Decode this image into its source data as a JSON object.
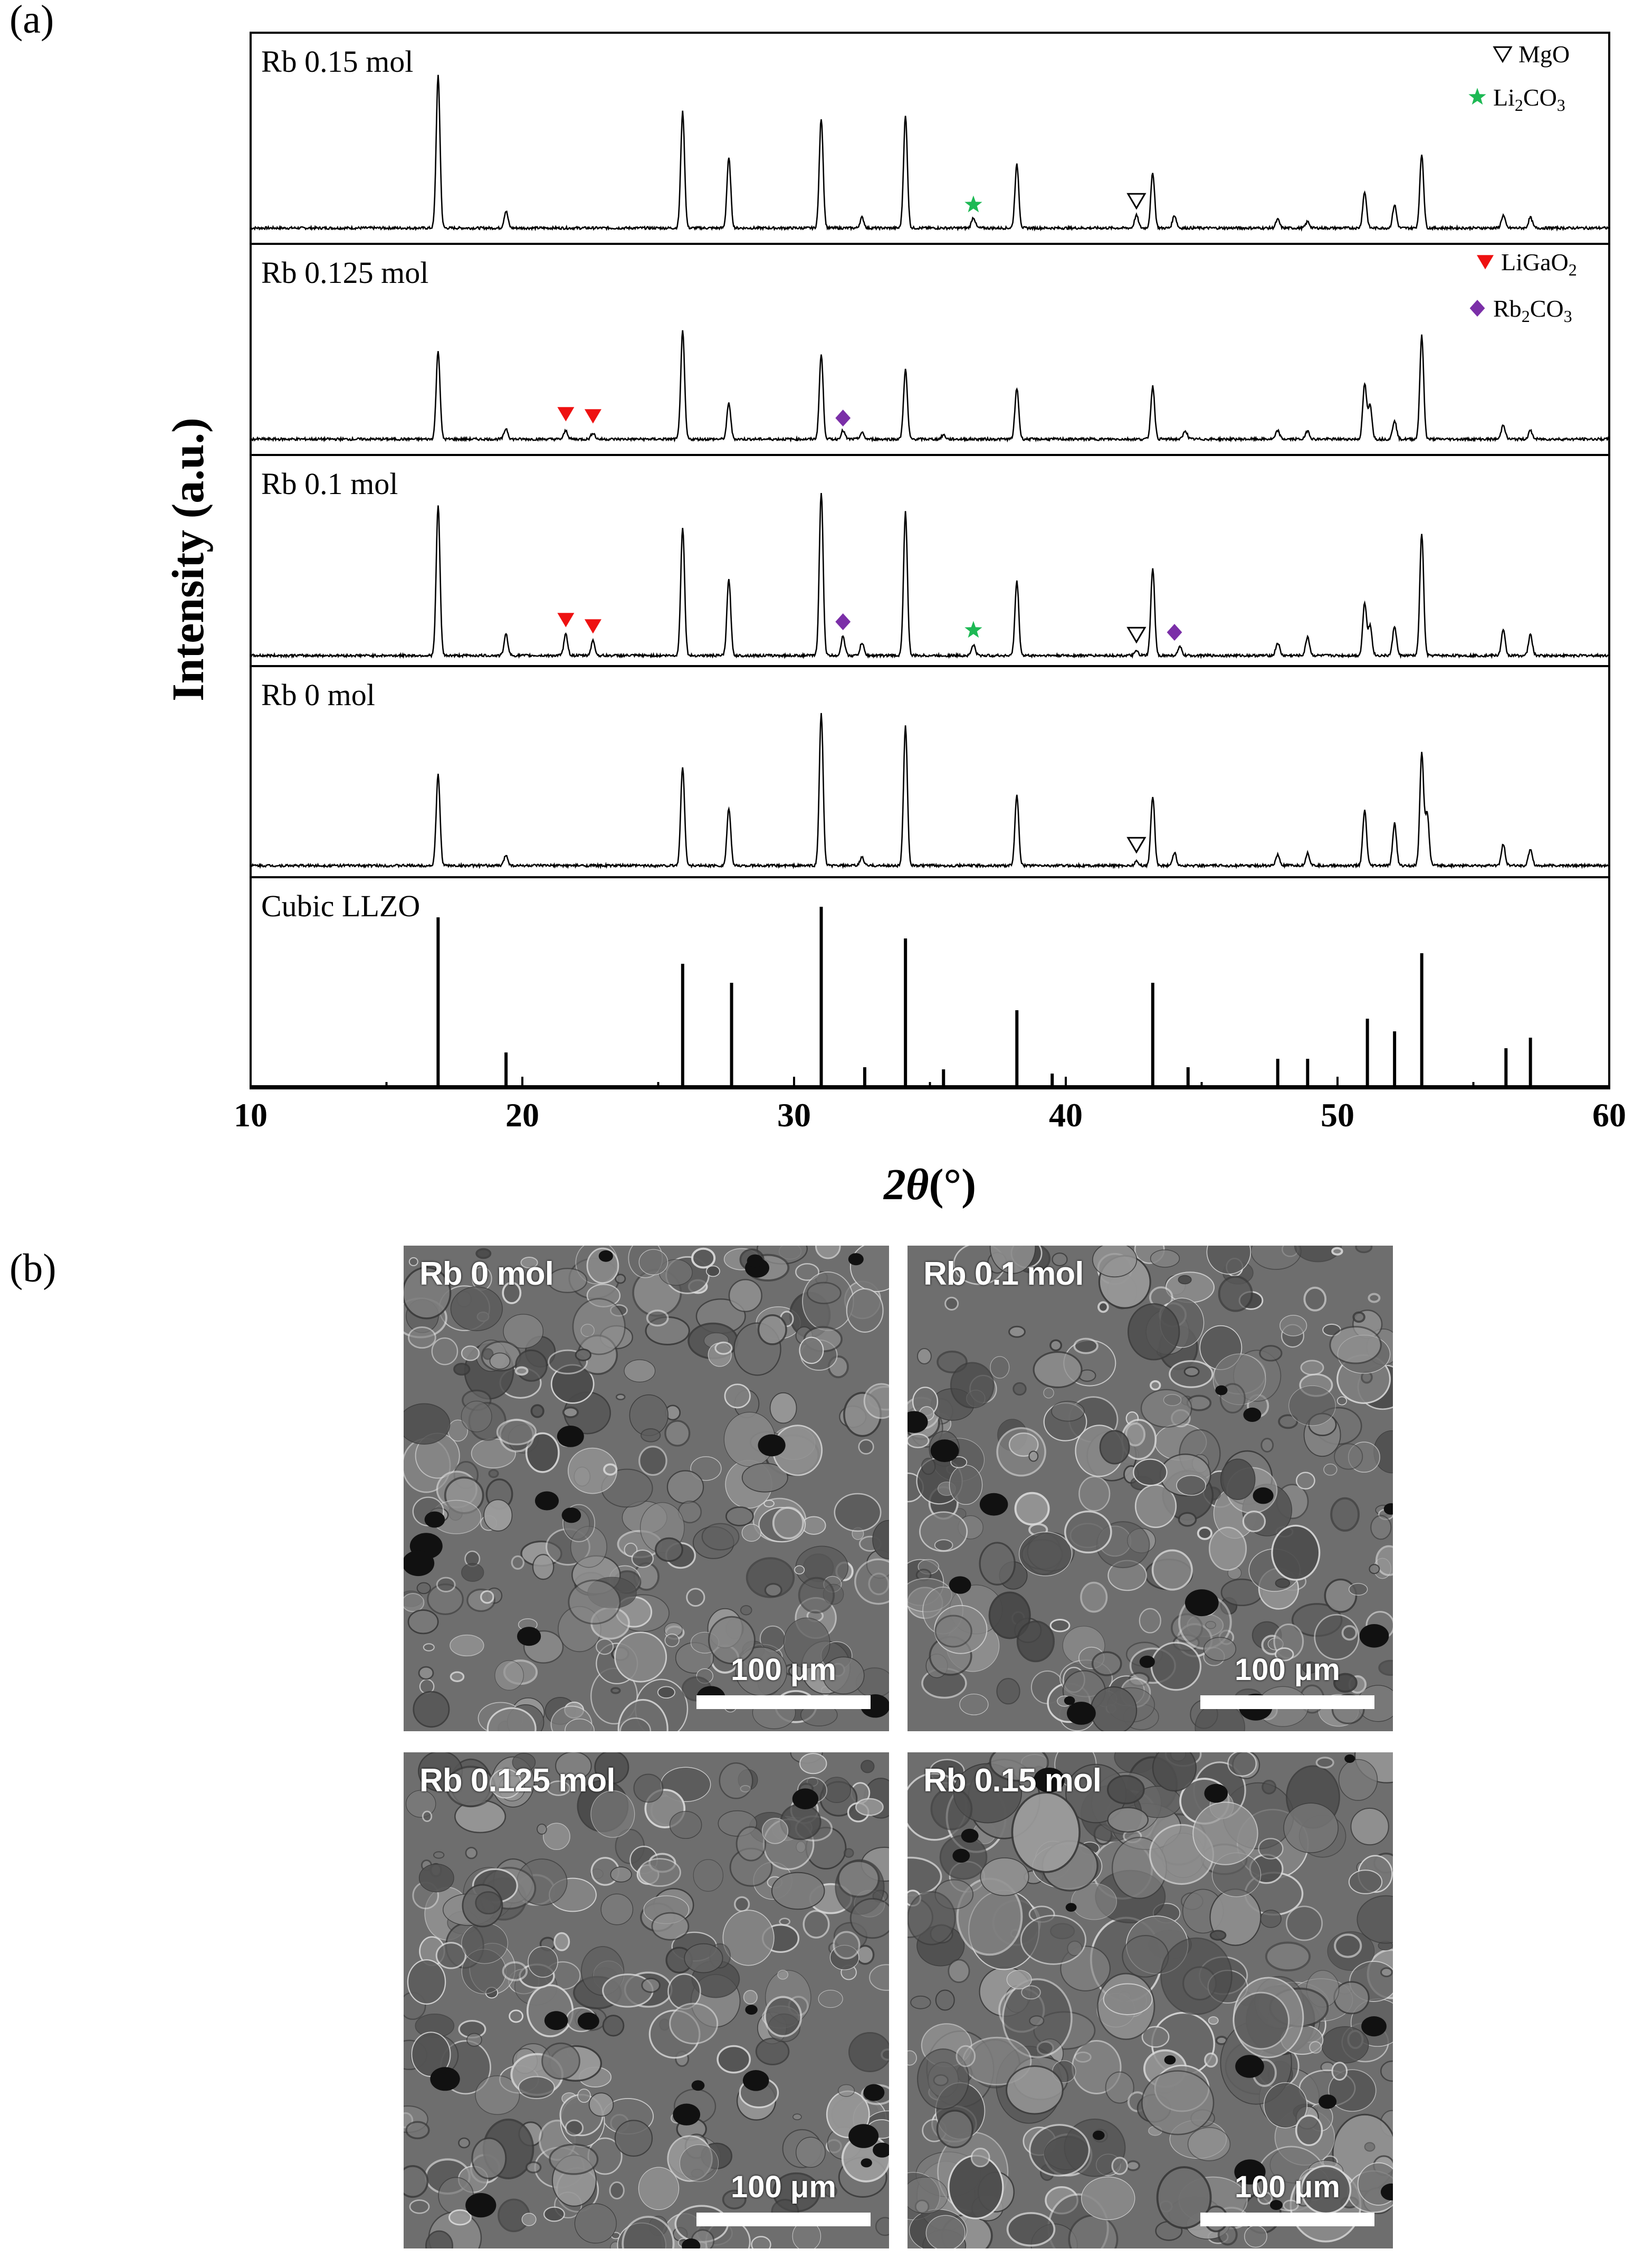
{
  "panels": {
    "a": "(a)",
    "b": "(b)"
  },
  "chart_data": {
    "type": "line",
    "ylabel": "Intensity (a.u.)",
    "xlabel": "2θ(°)",
    "xlabel_parts": {
      "theta": "2θ",
      "unit": "(°)"
    },
    "xlim": [
      10,
      60
    ],
    "xticks": [
      10,
      20,
      30,
      40,
      50,
      60
    ],
    "legend": [
      {
        "label": "MgO",
        "symbol": "open-triangle-down",
        "color": "#000000",
        "panel": 0
      },
      {
        "label": "Li2CO3",
        "base": "Li",
        "sub1": "2",
        "mid": "CO",
        "sub2": "3",
        "symbol": "star",
        "color": "#1db954",
        "panel": 0
      },
      {
        "label": "LiGaO2",
        "base": "LiGaO",
        "sub1": "2",
        "symbol": "filled-triangle-down",
        "color": "#ee1111",
        "panel": 1
      },
      {
        "label": "Rb2CO3",
        "base": "Rb",
        "sub1": "2",
        "mid": "CO",
        "sub2": "3",
        "symbol": "diamond",
        "color": "#7b2fa8",
        "panel": 1
      }
    ],
    "series": [
      {
        "name": "Rb 0.15 mol",
        "peaks": [
          [
            16.9,
            0.72
          ],
          [
            19.4,
            0.08
          ],
          [
            25.9,
            0.55
          ],
          [
            27.6,
            0.33
          ],
          [
            31.0,
            0.52
          ],
          [
            32.5,
            0.05
          ],
          [
            34.1,
            0.53
          ],
          [
            36.6,
            0.05
          ],
          [
            38.2,
            0.3
          ],
          [
            42.6,
            0.06
          ],
          [
            43.2,
            0.26
          ],
          [
            44.0,
            0.06
          ],
          [
            47.8,
            0.04
          ],
          [
            48.9,
            0.03
          ],
          [
            51.0,
            0.17
          ],
          [
            52.1,
            0.11
          ],
          [
            53.1,
            0.35
          ],
          [
            56.1,
            0.06
          ],
          [
            57.1,
            0.05
          ]
        ],
        "markers": [
          {
            "x": 36.6,
            "y": 0.11,
            "phase": "Li2CO3"
          },
          {
            "x": 42.6,
            "y": 0.13,
            "phase": "MgO"
          }
        ]
      },
      {
        "name": "Rb 0.125 mol",
        "peaks": [
          [
            16.9,
            0.42
          ],
          [
            19.4,
            0.05
          ],
          [
            21.6,
            0.04
          ],
          [
            22.6,
            0.03
          ],
          [
            25.9,
            0.51
          ],
          [
            27.6,
            0.17
          ],
          [
            31.0,
            0.4
          ],
          [
            31.8,
            0.04
          ],
          [
            32.5,
            0.03
          ],
          [
            34.1,
            0.33
          ],
          [
            35.5,
            0.02
          ],
          [
            38.2,
            0.24
          ],
          [
            43.2,
            0.25
          ],
          [
            44.4,
            0.04
          ],
          [
            47.8,
            0.04
          ],
          [
            48.9,
            0.04
          ],
          [
            51.0,
            0.26
          ],
          [
            51.2,
            0.16
          ],
          [
            52.1,
            0.09
          ],
          [
            53.1,
            0.49
          ],
          [
            56.1,
            0.07
          ],
          [
            57.1,
            0.04
          ]
        ],
        "markers": [
          {
            "x": 21.6,
            "y": 0.12,
            "phase": "LiGaO2"
          },
          {
            "x": 22.6,
            "y": 0.11,
            "phase": "LiGaO2"
          },
          {
            "x": 31.8,
            "y": 0.1,
            "phase": "Rb2CO3"
          }
        ]
      },
      {
        "name": "Rb 0.1 mol",
        "peaks": [
          [
            16.9,
            0.71
          ],
          [
            19.4,
            0.1
          ],
          [
            21.6,
            0.1
          ],
          [
            22.6,
            0.07
          ],
          [
            25.9,
            0.61
          ],
          [
            27.6,
            0.36
          ],
          [
            31.0,
            0.77
          ],
          [
            31.8,
            0.09
          ],
          [
            32.5,
            0.06
          ],
          [
            34.1,
            0.68
          ],
          [
            36.6,
            0.05
          ],
          [
            38.2,
            0.35
          ],
          [
            42.6,
            0.02
          ],
          [
            43.2,
            0.41
          ],
          [
            44.2,
            0.04
          ],
          [
            47.8,
            0.06
          ],
          [
            48.9,
            0.09
          ],
          [
            51.0,
            0.25
          ],
          [
            51.2,
            0.14
          ],
          [
            52.1,
            0.14
          ],
          [
            53.1,
            0.58
          ],
          [
            56.1,
            0.12
          ],
          [
            57.1,
            0.1
          ]
        ],
        "markers": [
          {
            "x": 21.6,
            "y": 0.17,
            "phase": "LiGaO2"
          },
          {
            "x": 22.6,
            "y": 0.14,
            "phase": "LiGaO2"
          },
          {
            "x": 31.8,
            "y": 0.16,
            "phase": "Rb2CO3"
          },
          {
            "x": 36.6,
            "y": 0.12,
            "phase": "Li2CO3"
          },
          {
            "x": 42.6,
            "y": 0.1,
            "phase": "MgO"
          },
          {
            "x": 44.0,
            "y": 0.11,
            "phase": "Rb2CO3"
          }
        ]
      },
      {
        "name": "Rb 0 mol",
        "peaks": [
          [
            16.9,
            0.43
          ],
          [
            19.4,
            0.05
          ],
          [
            25.9,
            0.47
          ],
          [
            27.6,
            0.27
          ],
          [
            31.0,
            0.72
          ],
          [
            32.5,
            0.04
          ],
          [
            34.1,
            0.66
          ],
          [
            38.2,
            0.33
          ],
          [
            42.6,
            0.02
          ],
          [
            43.2,
            0.33
          ],
          [
            44.0,
            0.06
          ],
          [
            47.8,
            0.05
          ],
          [
            48.9,
            0.06
          ],
          [
            51.0,
            0.26
          ],
          [
            52.1,
            0.2
          ],
          [
            53.1,
            0.53
          ],
          [
            53.3,
            0.25
          ],
          [
            56.1,
            0.1
          ],
          [
            57.1,
            0.08
          ]
        ],
        "markers": [
          {
            "x": 42.6,
            "y": 0.1,
            "phase": "MgO"
          }
        ]
      },
      {
        "name": "Cubic LLZO",
        "type": "stick",
        "peaks": [
          [
            16.9,
            0.8
          ],
          [
            19.4,
            0.16
          ],
          [
            25.9,
            0.58
          ],
          [
            27.7,
            0.49
          ],
          [
            31.0,
            0.85
          ],
          [
            32.6,
            0.09
          ],
          [
            34.1,
            0.7
          ],
          [
            35.5,
            0.08
          ],
          [
            38.2,
            0.36
          ],
          [
            39.5,
            0.06
          ],
          [
            43.2,
            0.49
          ],
          [
            44.5,
            0.09
          ],
          [
            47.8,
            0.13
          ],
          [
            48.9,
            0.13
          ],
          [
            51.1,
            0.32
          ],
          [
            52.1,
            0.26
          ],
          [
            53.1,
            0.63
          ],
          [
            56.2,
            0.18
          ],
          [
            57.1,
            0.23
          ]
        ]
      }
    ]
  },
  "sem_images": [
    {
      "label": "Rb 0 mol",
      "scale": "100 μm"
    },
    {
      "label": "Rb 0.1 mol",
      "scale": "100 μm"
    },
    {
      "label": "Rb 0.125 mol",
      "scale": "100 μm"
    },
    {
      "label": "Rb 0.15 mol",
      "scale": "100 μm"
    }
  ]
}
